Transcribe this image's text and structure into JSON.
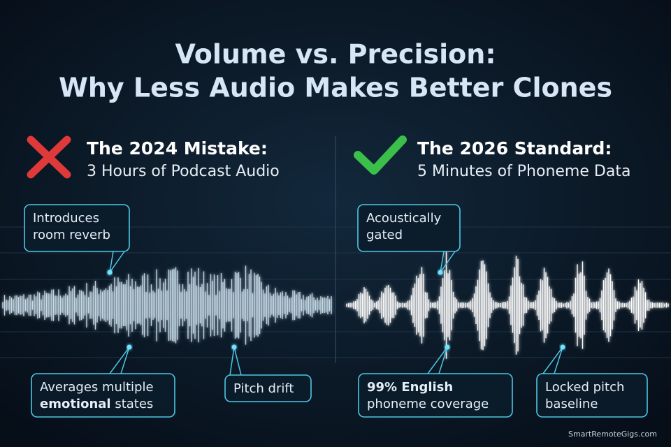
{
  "title": {
    "lines": [
      "Volume vs. Precision:",
      "Why Less Audio Makes Better Clones"
    ]
  },
  "panels": [
    {
      "heading": "The 2024 Mistake:",
      "subheading": "3 Hours of Podcast Audio",
      "callouts": [
        {
          "lines": [
            [
              {
                "text": "Introduces"
              }
            ],
            [
              {
                "text": "room reverb"
              }
            ]
          ]
        },
        {
          "lines": [
            [
              {
                "text": "Averages multiple"
              }
            ],
            [
              {
                "text": "emotional",
                "bold": true
              },
              {
                "text": " states"
              }
            ]
          ]
        },
        {
          "lines": [
            [
              {
                "text": "Pitch drift"
              }
            ]
          ]
        }
      ]
    },
    {
      "heading": "The 2026 Standard:",
      "subheading": "5 Minutes of Phoneme Data",
      "callouts": [
        {
          "lines": [
            [
              {
                "text": "Acoustically"
              }
            ],
            [
              {
                "text": "gated"
              }
            ]
          ]
        },
        {
          "lines": [
            [
              {
                "text": "99% English",
                "bold": true
              }
            ],
            [
              {
                "text": "phoneme coverage"
              }
            ]
          ]
        },
        {
          "lines": [
            [
              {
                "text": "Locked pitch"
              }
            ],
            [
              {
                "text": "baseline"
              }
            ]
          ]
        }
      ]
    }
  ],
  "watermark": "SmartRemoteGigs.com"
}
